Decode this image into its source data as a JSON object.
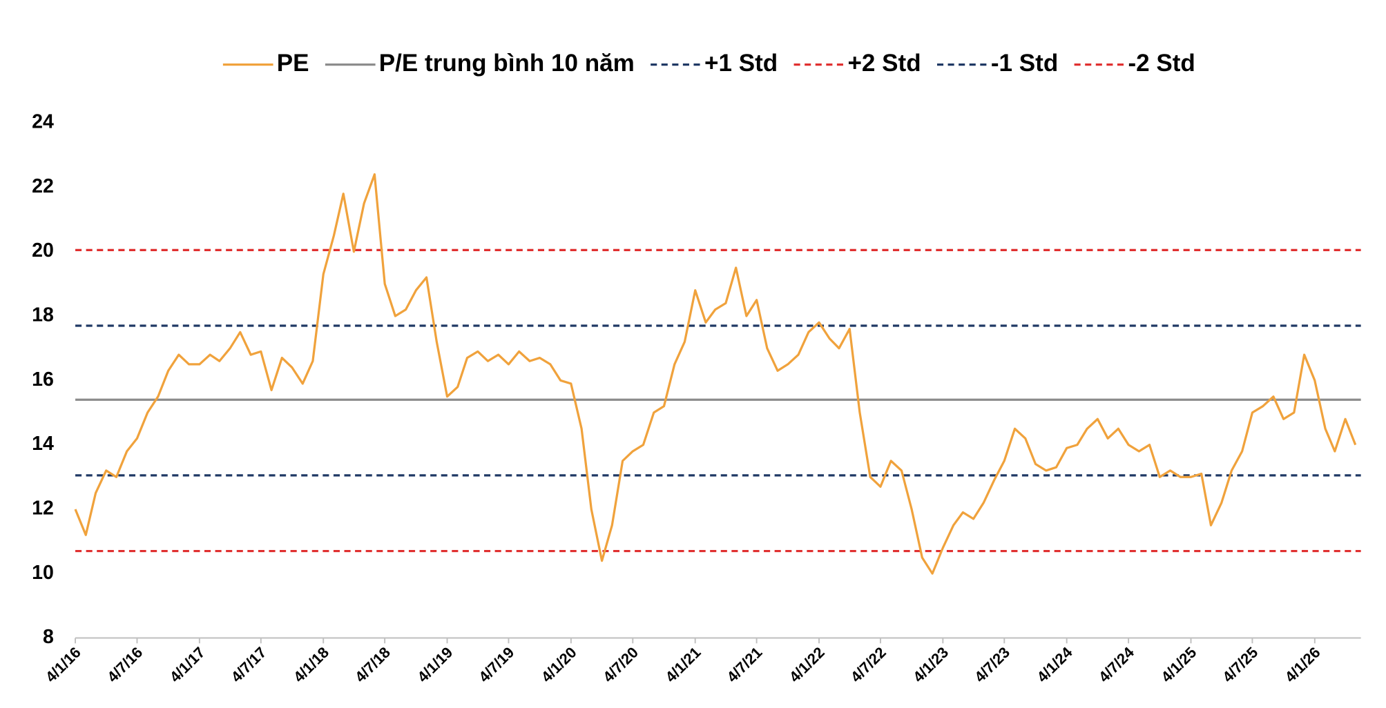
{
  "chart_data": {
    "type": "line",
    "x": [
      "2016-01-04",
      "2016-02-04",
      "2016-03-04",
      "2016-04-04",
      "2016-05-04",
      "2016-06-04",
      "2016-07-04",
      "2016-08-04",
      "2016-09-04",
      "2016-10-04",
      "2016-11-04",
      "2016-12-04",
      "2017-01-04",
      "2017-02-04",
      "2017-03-04",
      "2017-04-04",
      "2017-05-04",
      "2017-06-04",
      "2017-07-04",
      "2017-08-04",
      "2017-09-04",
      "2017-10-04",
      "2017-11-04",
      "2017-12-04",
      "2018-01-04",
      "2018-02-04",
      "2018-03-04",
      "2018-04-04",
      "2018-05-04",
      "2018-06-04",
      "2018-07-04",
      "2018-08-04",
      "2018-09-04",
      "2018-10-04",
      "2018-11-04",
      "2018-12-04",
      "2019-01-04",
      "2019-02-04",
      "2019-03-04",
      "2019-04-04",
      "2019-05-04",
      "2019-06-04",
      "2019-07-04",
      "2019-08-04",
      "2019-09-04",
      "2019-10-04",
      "2019-11-04",
      "2019-12-04",
      "2020-01-04",
      "2020-02-04",
      "2020-03-04",
      "2020-04-04",
      "2020-05-04",
      "2020-06-04",
      "2020-07-04",
      "2020-08-04",
      "2020-09-04",
      "2020-10-04",
      "2020-11-04",
      "2020-12-04",
      "2021-01-04",
      "2021-02-04",
      "2021-03-04",
      "2021-04-04",
      "2021-05-04",
      "2021-06-04",
      "2021-07-04",
      "2021-08-04",
      "2021-09-04",
      "2021-10-04",
      "2021-11-04",
      "2021-12-04",
      "2022-01-04",
      "2022-02-04",
      "2022-03-04",
      "2022-04-04",
      "2022-05-04",
      "2022-06-04",
      "2022-07-04",
      "2022-08-04",
      "2022-09-04",
      "2022-10-04",
      "2022-11-04",
      "2022-12-04",
      "2023-01-04",
      "2023-02-04",
      "2023-03-04",
      "2023-04-04",
      "2023-05-04",
      "2023-06-04",
      "2023-07-04",
      "2023-08-04",
      "2023-09-04",
      "2023-10-04",
      "2023-11-04",
      "2023-12-04",
      "2024-01-04",
      "2024-02-04",
      "2024-03-04",
      "2024-04-04",
      "2024-05-04",
      "2024-06-04",
      "2024-07-04",
      "2024-08-04",
      "2024-09-04",
      "2024-10-04",
      "2024-11-04",
      "2024-12-04",
      "2025-01-04",
      "2025-02-04",
      "2025-03-04",
      "2025-04-04",
      "2025-05-04",
      "2025-06-04",
      "2025-07-04",
      "2025-08-04",
      "2025-09-04",
      "2025-10-04",
      "2025-11-04",
      "2025-12-04",
      "2026-01-04",
      "2026-02-04",
      "2026-03-04",
      "2026-04-04",
      "2026-05-04"
    ],
    "series": [
      {
        "name": "PE",
        "color": "#f0a23c",
        "values": [
          12.0,
          11.2,
          12.5,
          13.2,
          13.0,
          13.8,
          14.2,
          15.0,
          15.5,
          16.3,
          16.8,
          16.5,
          16.5,
          16.8,
          16.6,
          17.0,
          17.5,
          16.8,
          16.9,
          15.7,
          16.7,
          16.4,
          15.9,
          16.6,
          19.3,
          20.5,
          21.8,
          20.0,
          21.5,
          22.4,
          19.0,
          18.0,
          18.2,
          18.8,
          19.2,
          17.2,
          15.5,
          15.8,
          16.7,
          16.9,
          16.6,
          16.8,
          16.5,
          16.9,
          16.6,
          16.7,
          16.5,
          16.0,
          15.9,
          14.5,
          12.0,
          10.4,
          11.5,
          13.5,
          13.8,
          14.0,
          15.0,
          15.2,
          16.5,
          17.2,
          18.8,
          17.8,
          18.2,
          18.4,
          19.5,
          18.0,
          18.5,
          17.0,
          16.3,
          16.5,
          16.8,
          17.5,
          17.8,
          17.3,
          17.0,
          17.6,
          15.0,
          13.0,
          12.7,
          13.5,
          13.2,
          12.0,
          10.5,
          10.0,
          10.8,
          11.5,
          11.9,
          11.7,
          12.2,
          12.9,
          13.5,
          14.5,
          14.2,
          13.4,
          13.2,
          13.3,
          13.9,
          14.0,
          14.5,
          14.8,
          14.2,
          14.5,
          14.0,
          13.8,
          14.0,
          13.0,
          13.2,
          13.0,
          13.0,
          13.1,
          11.5,
          12.2,
          13.2,
          13.8,
          15.0,
          15.2,
          15.5,
          14.8,
          15.0,
          16.8,
          16.0,
          14.5,
          13.8,
          14.8,
          14.0
        ]
      }
    ],
    "hlines": [
      {
        "name": "P/E trung bình 10 năm",
        "value": 15.4,
        "color": "#8c8c8c",
        "dashed": false
      },
      {
        "name": "+1 Std",
        "value": 17.7,
        "color": "#1f3864",
        "dashed": true
      },
      {
        "name": "+2 Std",
        "value": 20.05,
        "color": "#e03030",
        "dashed": true
      },
      {
        "name": "-1 Std",
        "value": 13.05,
        "color": "#1f3864",
        "dashed": true
      },
      {
        "name": "-2 Std",
        "value": 10.7,
        "color": "#e03030",
        "dashed": true
      }
    ],
    "xlim": [
      "2016-01-04",
      "2026-05-20"
    ],
    "xticks": [
      {
        "value": "2016-01-04",
        "label": "4/1/16"
      },
      {
        "value": "2016-07-04",
        "label": "4/7/16"
      },
      {
        "value": "2017-01-04",
        "label": "4/1/17"
      },
      {
        "value": "2017-07-04",
        "label": "4/7/17"
      },
      {
        "value": "2018-01-04",
        "label": "4/1/18"
      },
      {
        "value": "2018-07-04",
        "label": "4/7/18"
      },
      {
        "value": "2019-01-04",
        "label": "4/1/19"
      },
      {
        "value": "2019-07-04",
        "label": "4/7/19"
      },
      {
        "value": "2020-01-04",
        "label": "4/1/20"
      },
      {
        "value": "2020-07-04",
        "label": "4/7/20"
      },
      {
        "value": "2021-01-04",
        "label": "4/1/21"
      },
      {
        "value": "2021-07-04",
        "label": "4/7/21"
      },
      {
        "value": "2022-01-04",
        "label": "4/1/22"
      },
      {
        "value": "2022-07-04",
        "label": "4/7/22"
      },
      {
        "value": "2023-01-04",
        "label": "4/1/23"
      },
      {
        "value": "2023-07-04",
        "label": "4/7/23"
      },
      {
        "value": "2024-01-04",
        "label": "4/1/24"
      },
      {
        "value": "2024-07-04",
        "label": "4/7/24"
      },
      {
        "value": "2025-01-04",
        "label": "4/1/25"
      },
      {
        "value": "2025-07-04",
        "label": "4/7/25"
      },
      {
        "value": "2026-01-04",
        "label": "4/1/26"
      }
    ],
    "ylim": [
      8,
      24
    ],
    "yticks": [
      8,
      10,
      12,
      14,
      16,
      18,
      20,
      22,
      24
    ],
    "grid": false,
    "legend": "top"
  }
}
